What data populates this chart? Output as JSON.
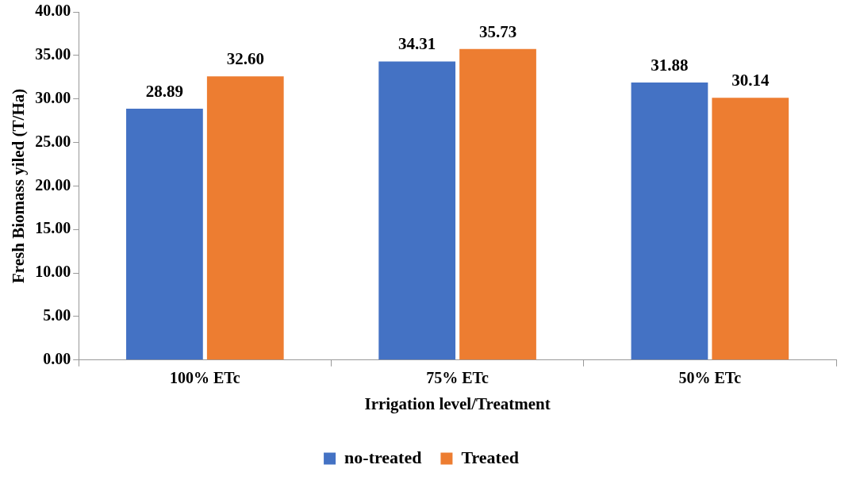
{
  "chart_data": {
    "type": "bar",
    "xlabel": "Irrigation level/Treatment",
    "ylabel": "Fresh Biomass yiled (T/Ha)",
    "categories": [
      "100% ETc",
      "75% ETc",
      "50% ETc"
    ],
    "series": [
      {
        "name": "no-treated",
        "color": "#4472c4",
        "values": [
          28.89,
          34.31,
          31.88
        ],
        "value_labels": [
          "28.89",
          "34.31",
          "31.88"
        ]
      },
      {
        "name": "Treated",
        "color": "#ed7d31",
        "values": [
          32.6,
          35.73,
          30.14
        ],
        "value_labels": [
          "32.60",
          "35.73",
          "30.14"
        ]
      }
    ],
    "ylim": [
      0,
      40
    ],
    "yticks": [
      {
        "value": 0,
        "label": "0.00"
      },
      {
        "value": 5,
        "label": "5.00"
      },
      {
        "value": 10,
        "label": "10.00"
      },
      {
        "value": 15,
        "label": "15.00"
      },
      {
        "value": 20,
        "label": "20.00"
      },
      {
        "value": 25,
        "label": "25.00"
      },
      {
        "value": 30,
        "label": "30.00"
      },
      {
        "value": 35,
        "label": "35.00"
      },
      {
        "value": 40,
        "label": "40.00"
      }
    ],
    "legend": "bottom"
  }
}
